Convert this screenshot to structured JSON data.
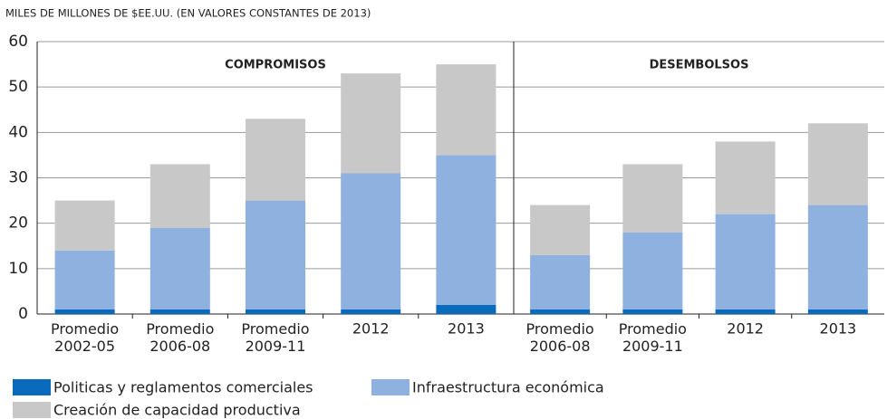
{
  "chart_data": [
    {
      "type": "bar",
      "stacked": true,
      "title": "COMPROMISOS",
      "y_label": "MILES DE MILLONES DE $EE.UU. (EN VALORES CONSTANTES DE 2013)",
      "categories": [
        "Promedio 2002-05",
        "Promedio 2006-08",
        "Promedio 2009-11",
        "2012",
        "2013"
      ],
      "series": [
        {
          "name": "Politicas y reglamentos comerciales",
          "color": "#0a6bbd",
          "values": [
            1,
            1,
            1,
            1,
            2
          ]
        },
        {
          "name": "Infraestructura económica",
          "color": "#8fb1e0",
          "values": [
            13,
            18,
            24,
            30,
            33
          ]
        },
        {
          "name": "Creación de capacidad productiva",
          "color": "#c8c8c8",
          "values": [
            11,
            14,
            18,
            22,
            20
          ]
        }
      ],
      "ylim": [
        0,
        60
      ],
      "yticks": [
        0,
        10,
        20,
        30,
        40,
        50,
        60
      ],
      "grid": true
    },
    {
      "type": "bar",
      "stacked": true,
      "title": "DESEMBOLSOS",
      "categories": [
        "Promedio 2006-08",
        "Promedio 2009-11",
        "2012",
        "2013"
      ],
      "series": [
        {
          "name": "Politicas y reglamentos comerciales",
          "color": "#0a6bbd",
          "values": [
            1,
            1,
            1,
            1
          ]
        },
        {
          "name": "Infraestructura económica",
          "color": "#8fb1e0",
          "values": [
            12,
            17,
            21,
            23
          ]
        },
        {
          "name": "Creación de capacidad productiva",
          "color": "#c8c8c8",
          "values": [
            11,
            15,
            16,
            18
          ]
        }
      ]
    }
  ]
}
